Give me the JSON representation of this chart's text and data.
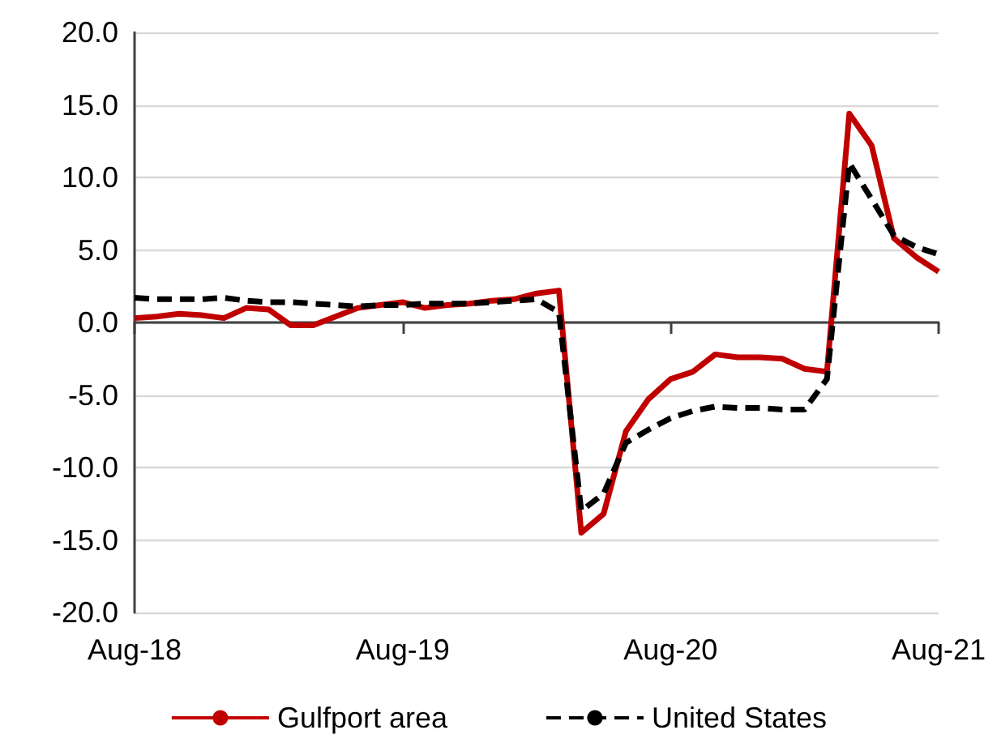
{
  "chart_data": {
    "type": "line",
    "categories": [
      "Aug-18",
      null,
      null,
      null,
      null,
      null,
      null,
      null,
      null,
      null,
      null,
      null,
      "Aug-19",
      null,
      null,
      null,
      null,
      null,
      null,
      null,
      null,
      null,
      null,
      null,
      "Aug-20",
      null,
      null,
      null,
      null,
      null,
      null,
      null,
      null,
      null,
      null,
      null,
      "Aug-21"
    ],
    "series": [
      {
        "name": "Gulfport area",
        "color": "#c00000",
        "line_style": "solid",
        "values": [
          0.3,
          0.4,
          0.6,
          0.5,
          0.3,
          1.0,
          0.9,
          -0.2,
          -0.2,
          0.4,
          1.0,
          1.2,
          1.4,
          1.0,
          1.2,
          1.3,
          1.5,
          1.6,
          2.0,
          2.2,
          -14.5,
          -13.2,
          -7.5,
          -5.3,
          -3.9,
          -3.4,
          -2.2,
          -2.4,
          -2.4,
          -2.5,
          -3.2,
          -3.4,
          14.4,
          12.2,
          5.8,
          4.5,
          3.5
        ]
      },
      {
        "name": "United States",
        "color": "#000000",
        "line_style": "dashed",
        "values": [
          1.7,
          1.6,
          1.6,
          1.6,
          1.7,
          1.5,
          1.4,
          1.4,
          1.3,
          1.2,
          1.1,
          1.2,
          1.2,
          1.3,
          1.3,
          1.3,
          1.4,
          1.5,
          1.6,
          0.7,
          -13.0,
          -11.8,
          -8.3,
          -7.4,
          -6.6,
          -6.1,
          -5.8,
          -5.9,
          -5.9,
          -6.0,
          -6.0,
          -3.9,
          11.0,
          8.5,
          6.0,
          5.2,
          4.7
        ]
      }
    ],
    "ylim": [
      -20,
      20
    ],
    "yticks": [
      {
        "value": -20,
        "label": "-20.0"
      },
      {
        "value": -15,
        "label": "-15.0"
      },
      {
        "value": -10,
        "label": "-10.0"
      },
      {
        "value": -5,
        "label": "-5.0"
      },
      {
        "value": 0,
        "label": "0.0"
      },
      {
        "value": 5,
        "label": "5.0"
      },
      {
        "value": 10,
        "label": "10.0"
      },
      {
        "value": 15,
        "label": "15.0"
      },
      {
        "value": 20,
        "label": "20.0"
      }
    ],
    "grid": "y",
    "legend": "bottom",
    "marker": "none"
  }
}
